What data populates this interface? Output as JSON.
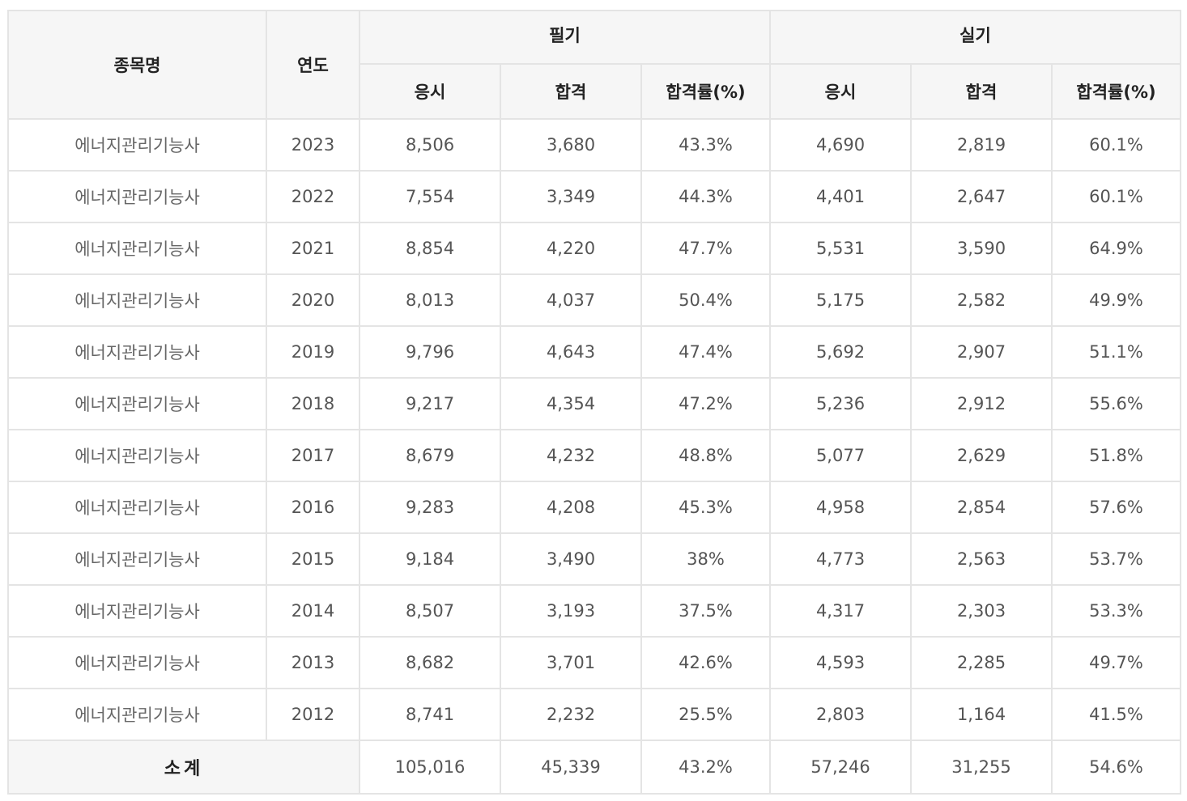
{
  "headers": {
    "name": "종목명",
    "year": "연도",
    "written": "필기",
    "practical": "실기",
    "applicants": "응시",
    "passed": "합격",
    "rate": "합격률(%)"
  },
  "rows": [
    {
      "name": "에너지관리기능사",
      "year": "2023",
      "w_app": "8,506",
      "w_pass": "3,680",
      "w_rate": "43.3%",
      "p_app": "4,690",
      "p_pass": "2,819",
      "p_rate": "60.1%"
    },
    {
      "name": "에너지관리기능사",
      "year": "2022",
      "w_app": "7,554",
      "w_pass": "3,349",
      "w_rate": "44.3%",
      "p_app": "4,401",
      "p_pass": "2,647",
      "p_rate": "60.1%"
    },
    {
      "name": "에너지관리기능사",
      "year": "2021",
      "w_app": "8,854",
      "w_pass": "4,220",
      "w_rate": "47.7%",
      "p_app": "5,531",
      "p_pass": "3,590",
      "p_rate": "64.9%"
    },
    {
      "name": "에너지관리기능사",
      "year": "2020",
      "w_app": "8,013",
      "w_pass": "4,037",
      "w_rate": "50.4%",
      "p_app": "5,175",
      "p_pass": "2,582",
      "p_rate": "49.9%"
    },
    {
      "name": "에너지관리기능사",
      "year": "2019",
      "w_app": "9,796",
      "w_pass": "4,643",
      "w_rate": "47.4%",
      "p_app": "5,692",
      "p_pass": "2,907",
      "p_rate": "51.1%"
    },
    {
      "name": "에너지관리기능사",
      "year": "2018",
      "w_app": "9,217",
      "w_pass": "4,354",
      "w_rate": "47.2%",
      "p_app": "5,236",
      "p_pass": "2,912",
      "p_rate": "55.6%"
    },
    {
      "name": "에너지관리기능사",
      "year": "2017",
      "w_app": "8,679",
      "w_pass": "4,232",
      "w_rate": "48.8%",
      "p_app": "5,077",
      "p_pass": "2,629",
      "p_rate": "51.8%"
    },
    {
      "name": "에너지관리기능사",
      "year": "2016",
      "w_app": "9,283",
      "w_pass": "4,208",
      "w_rate": "45.3%",
      "p_app": "4,958",
      "p_pass": "2,854",
      "p_rate": "57.6%"
    },
    {
      "name": "에너지관리기능사",
      "year": "2015",
      "w_app": "9,184",
      "w_pass": "3,490",
      "w_rate": "38%",
      "p_app": "4,773",
      "p_pass": "2,563",
      "p_rate": "53.7%"
    },
    {
      "name": "에너지관리기능사",
      "year": "2014",
      "w_app": "8,507",
      "w_pass": "3,193",
      "w_rate": "37.5%",
      "p_app": "4,317",
      "p_pass": "2,303",
      "p_rate": "53.3%"
    },
    {
      "name": "에너지관리기능사",
      "year": "2013",
      "w_app": "8,682",
      "w_pass": "3,701",
      "w_rate": "42.6%",
      "p_app": "4,593",
      "p_pass": "2,285",
      "p_rate": "49.7%"
    },
    {
      "name": "에너지관리기능사",
      "year": "2012",
      "w_app": "8,741",
      "w_pass": "2,232",
      "w_rate": "25.5%",
      "p_app": "2,803",
      "p_pass": "1,164",
      "p_rate": "41.5%"
    }
  ],
  "total": {
    "label": "소계",
    "w_app": "105,016",
    "w_pass": "45,339",
    "w_rate": "43.2%",
    "p_app": "57,246",
    "p_pass": "31,255",
    "p_rate": "54.6%"
  }
}
